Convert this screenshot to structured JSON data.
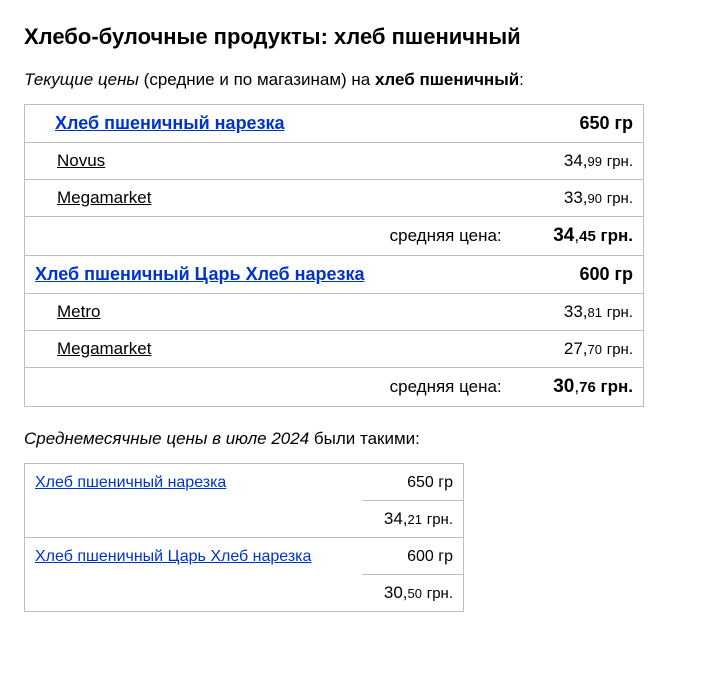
{
  "colors": {
    "link": "#0033cc",
    "border": "#bfbfbf",
    "text": "#000000",
    "bg": "#ffffff"
  },
  "heading": "Хлебо-булочные продукты: хлеб пшеничный",
  "intro": {
    "italic": "Текущие цены",
    "paren": " (средние и по магазинам) на ",
    "bold": "хлеб пшеничный",
    "tail": ":"
  },
  "currency": "грн.",
  "avg_label": "средняя цена:",
  "products": [
    {
      "name": "Хлеб пшеничный нарезка",
      "weight": "650 гр",
      "stores": [
        {
          "name": "Novus",
          "price_int": "34",
          "price_dec": "99"
        },
        {
          "name": "Megamarket",
          "price_int": "33",
          "price_dec": "90"
        }
      ],
      "avg_int": "34",
      "avg_dec": "45"
    },
    {
      "name": "Хлеб пшеничный Царь Хлеб нарезка",
      "weight": "600 гр",
      "stores": [
        {
          "name": "Metro",
          "price_int": "33",
          "price_dec": "81"
        },
        {
          "name": "Megamarket",
          "price_int": "27",
          "price_dec": "70"
        }
      ],
      "avg_int": "30",
      "avg_dec": "76"
    }
  ],
  "monthly": {
    "intro_italic": "Среднемесячные цены в июле 2024",
    "intro_tail": " были такими:",
    "rows": [
      {
        "name": "Хлеб пшеничный нарезка",
        "weight": "650 гр",
        "price_int": "34",
        "price_dec": "21"
      },
      {
        "name": "Хлеб пшеничный Царь Хлеб нарезка",
        "weight": "600 гр",
        "price_int": "30",
        "price_dec": "50"
      }
    ]
  }
}
